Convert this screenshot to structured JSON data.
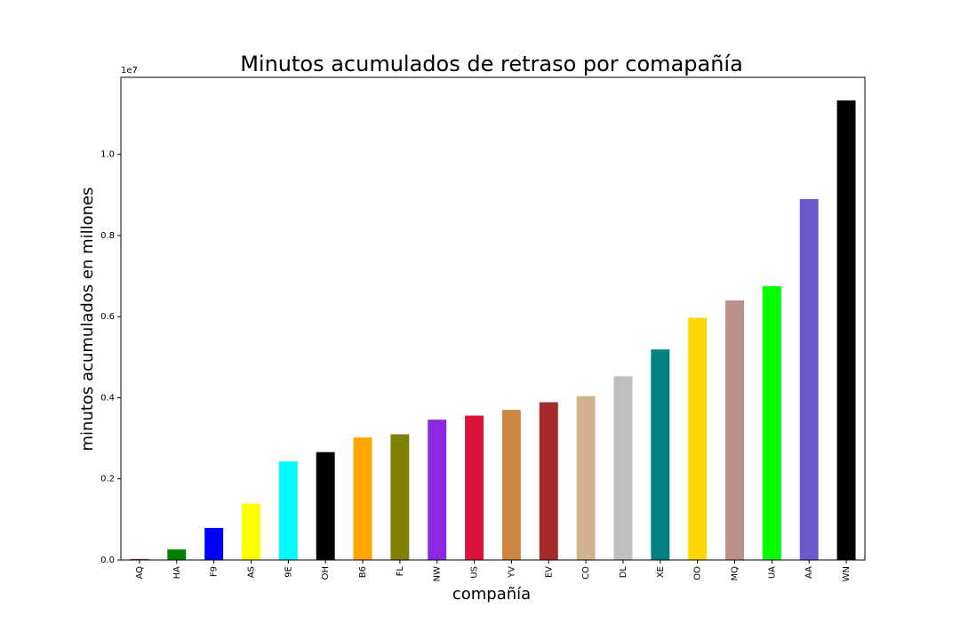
{
  "chart_data": {
    "type": "bar",
    "title": "Minutos acumulados de retraso por comapañía",
    "xlabel": "compañía",
    "ylabel": "minutos acumulados en millones",
    "offset_text": "1e7",
    "ylim": [
      0,
      11900000
    ],
    "y_ticks": [
      0,
      2000000,
      4000000,
      6000000,
      8000000,
      10000000
    ],
    "y_tick_labels": [
      "0.0",
      "0.2",
      "0.4",
      "0.6",
      "0.8",
      "1.0"
    ],
    "grid": false,
    "categories": [
      "AQ",
      "HA",
      "F9",
      "AS",
      "9E",
      "OH",
      "B6",
      "FL",
      "NW",
      "US",
      "YV",
      "EV",
      "CO",
      "DL",
      "XE",
      "OO",
      "MQ",
      "UA",
      "AA",
      "WN"
    ],
    "values": [
      25000,
      260000,
      790000,
      1390000,
      2430000,
      2660000,
      3020000,
      3100000,
      3460000,
      3560000,
      3700000,
      3890000,
      4040000,
      4530000,
      5190000,
      5970000,
      6400000,
      6750000,
      8900000,
      11330000
    ],
    "colors": [
      "#a52a2a",
      "#008000",
      "#0000ff",
      "#ffff00",
      "#00ffff",
      "#000000",
      "#ffa500",
      "#808000",
      "#8a2be2",
      "#dc143c",
      "#cd853f",
      "#a52a2a",
      "#d2b48c",
      "#c0c0c0",
      "#008080",
      "#ffd700",
      "#bc8f8f",
      "#00ff00",
      "#6a5acd",
      "#000000"
    ]
  }
}
